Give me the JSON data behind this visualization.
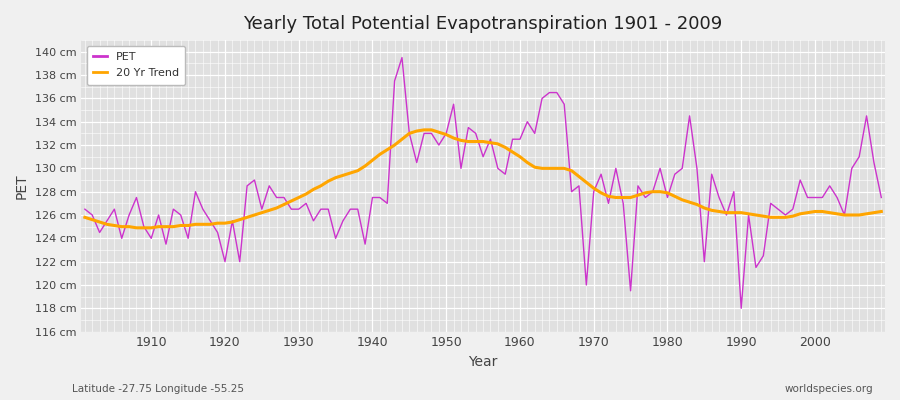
{
  "title": "Yearly Total Potential Evapotranspiration 1901 - 2009",
  "xlabel": "Year",
  "ylabel": "PET",
  "footnote_left": "Latitude -27.75 Longitude -55.25",
  "footnote_right": "worldspecies.org",
  "ylim": [
    116,
    141
  ],
  "background_color": "#f0f0f0",
  "plot_bg_color": "#e0e0e0",
  "pet_color": "#cc33cc",
  "trend_color": "#ffa500",
  "pet_label": "PET",
  "trend_label": "20 Yr Trend",
  "years": [
    1901,
    1902,
    1903,
    1904,
    1905,
    1906,
    1907,
    1908,
    1909,
    1910,
    1911,
    1912,
    1913,
    1914,
    1915,
    1916,
    1917,
    1918,
    1919,
    1920,
    1921,
    1922,
    1923,
    1924,
    1925,
    1926,
    1927,
    1928,
    1929,
    1930,
    1931,
    1932,
    1933,
    1934,
    1935,
    1936,
    1937,
    1938,
    1939,
    1940,
    1941,
    1942,
    1943,
    1944,
    1945,
    1946,
    1947,
    1948,
    1949,
    1950,
    1951,
    1952,
    1953,
    1954,
    1955,
    1956,
    1957,
    1958,
    1959,
    1960,
    1961,
    1962,
    1963,
    1964,
    1965,
    1966,
    1967,
    1968,
    1969,
    1970,
    1971,
    1972,
    1973,
    1974,
    1975,
    1976,
    1977,
    1978,
    1979,
    1980,
    1981,
    1982,
    1983,
    1984,
    1985,
    1986,
    1987,
    1988,
    1989,
    1990,
    1991,
    1992,
    1993,
    1994,
    1995,
    1996,
    1997,
    1998,
    1999,
    2000,
    2001,
    2002,
    2003,
    2004,
    2005,
    2006,
    2007,
    2008,
    2009
  ],
  "pet_values": [
    126.5,
    126.0,
    124.5,
    125.5,
    126.5,
    124.0,
    126.0,
    127.5,
    125.0,
    124.0,
    126.0,
    123.5,
    126.5,
    126.0,
    124.0,
    128.0,
    126.5,
    125.5,
    124.5,
    122.0,
    125.5,
    122.0,
    128.5,
    129.0,
    126.5,
    128.5,
    127.5,
    127.5,
    126.5,
    126.5,
    127.0,
    125.5,
    126.5,
    126.5,
    124.0,
    125.5,
    126.5,
    126.5,
    123.5,
    127.5,
    127.5,
    127.0,
    137.5,
    139.5,
    133.0,
    130.5,
    133.0,
    133.0,
    132.0,
    133.0,
    135.5,
    130.0,
    133.5,
    133.0,
    131.0,
    132.5,
    130.0,
    129.5,
    132.5,
    132.5,
    134.0,
    133.0,
    136.0,
    136.5,
    136.5,
    135.5,
    128.0,
    128.5,
    120.0,
    128.0,
    129.5,
    127.0,
    130.0,
    127.0,
    119.5,
    128.5,
    127.5,
    128.0,
    130.0,
    127.5,
    129.5,
    130.0,
    134.5,
    130.0,
    122.0,
    129.5,
    127.5,
    126.0,
    128.0,
    118.0,
    126.0,
    121.5,
    122.5,
    127.0,
    126.5,
    126.0,
    126.5,
    129.0,
    127.5,
    127.5,
    127.5,
    128.5,
    127.5,
    126.0,
    130.0,
    131.0,
    134.5,
    130.5,
    127.5
  ],
  "trend_values": [
    125.8,
    125.6,
    125.4,
    125.2,
    125.1,
    125.0,
    125.0,
    124.9,
    124.9,
    124.9,
    125.0,
    125.0,
    125.0,
    125.1,
    125.1,
    125.2,
    125.2,
    125.2,
    125.3,
    125.3,
    125.4,
    125.6,
    125.8,
    126.0,
    126.2,
    126.4,
    126.6,
    126.9,
    127.2,
    127.5,
    127.8,
    128.2,
    128.5,
    128.9,
    129.2,
    129.4,
    129.6,
    129.8,
    130.2,
    130.7,
    131.2,
    131.6,
    132.0,
    132.5,
    133.0,
    133.2,
    133.3,
    133.3,
    133.1,
    132.9,
    132.6,
    132.4,
    132.3,
    132.3,
    132.3,
    132.2,
    132.1,
    131.8,
    131.4,
    131.0,
    130.5,
    130.1,
    130.0,
    130.0,
    130.0,
    130.0,
    129.8,
    129.3,
    128.8,
    128.3,
    127.9,
    127.6,
    127.5,
    127.5,
    127.5,
    127.7,
    127.9,
    128.0,
    128.0,
    127.9,
    127.6,
    127.3,
    127.1,
    126.9,
    126.6,
    126.4,
    126.3,
    126.2,
    126.2,
    126.2,
    126.1,
    126.0,
    125.9,
    125.8,
    125.8,
    125.8,
    125.9,
    126.1,
    126.2,
    126.3,
    126.3,
    126.2,
    126.1,
    126.0,
    126.0,
    126.0,
    126.1,
    126.2,
    126.3
  ]
}
